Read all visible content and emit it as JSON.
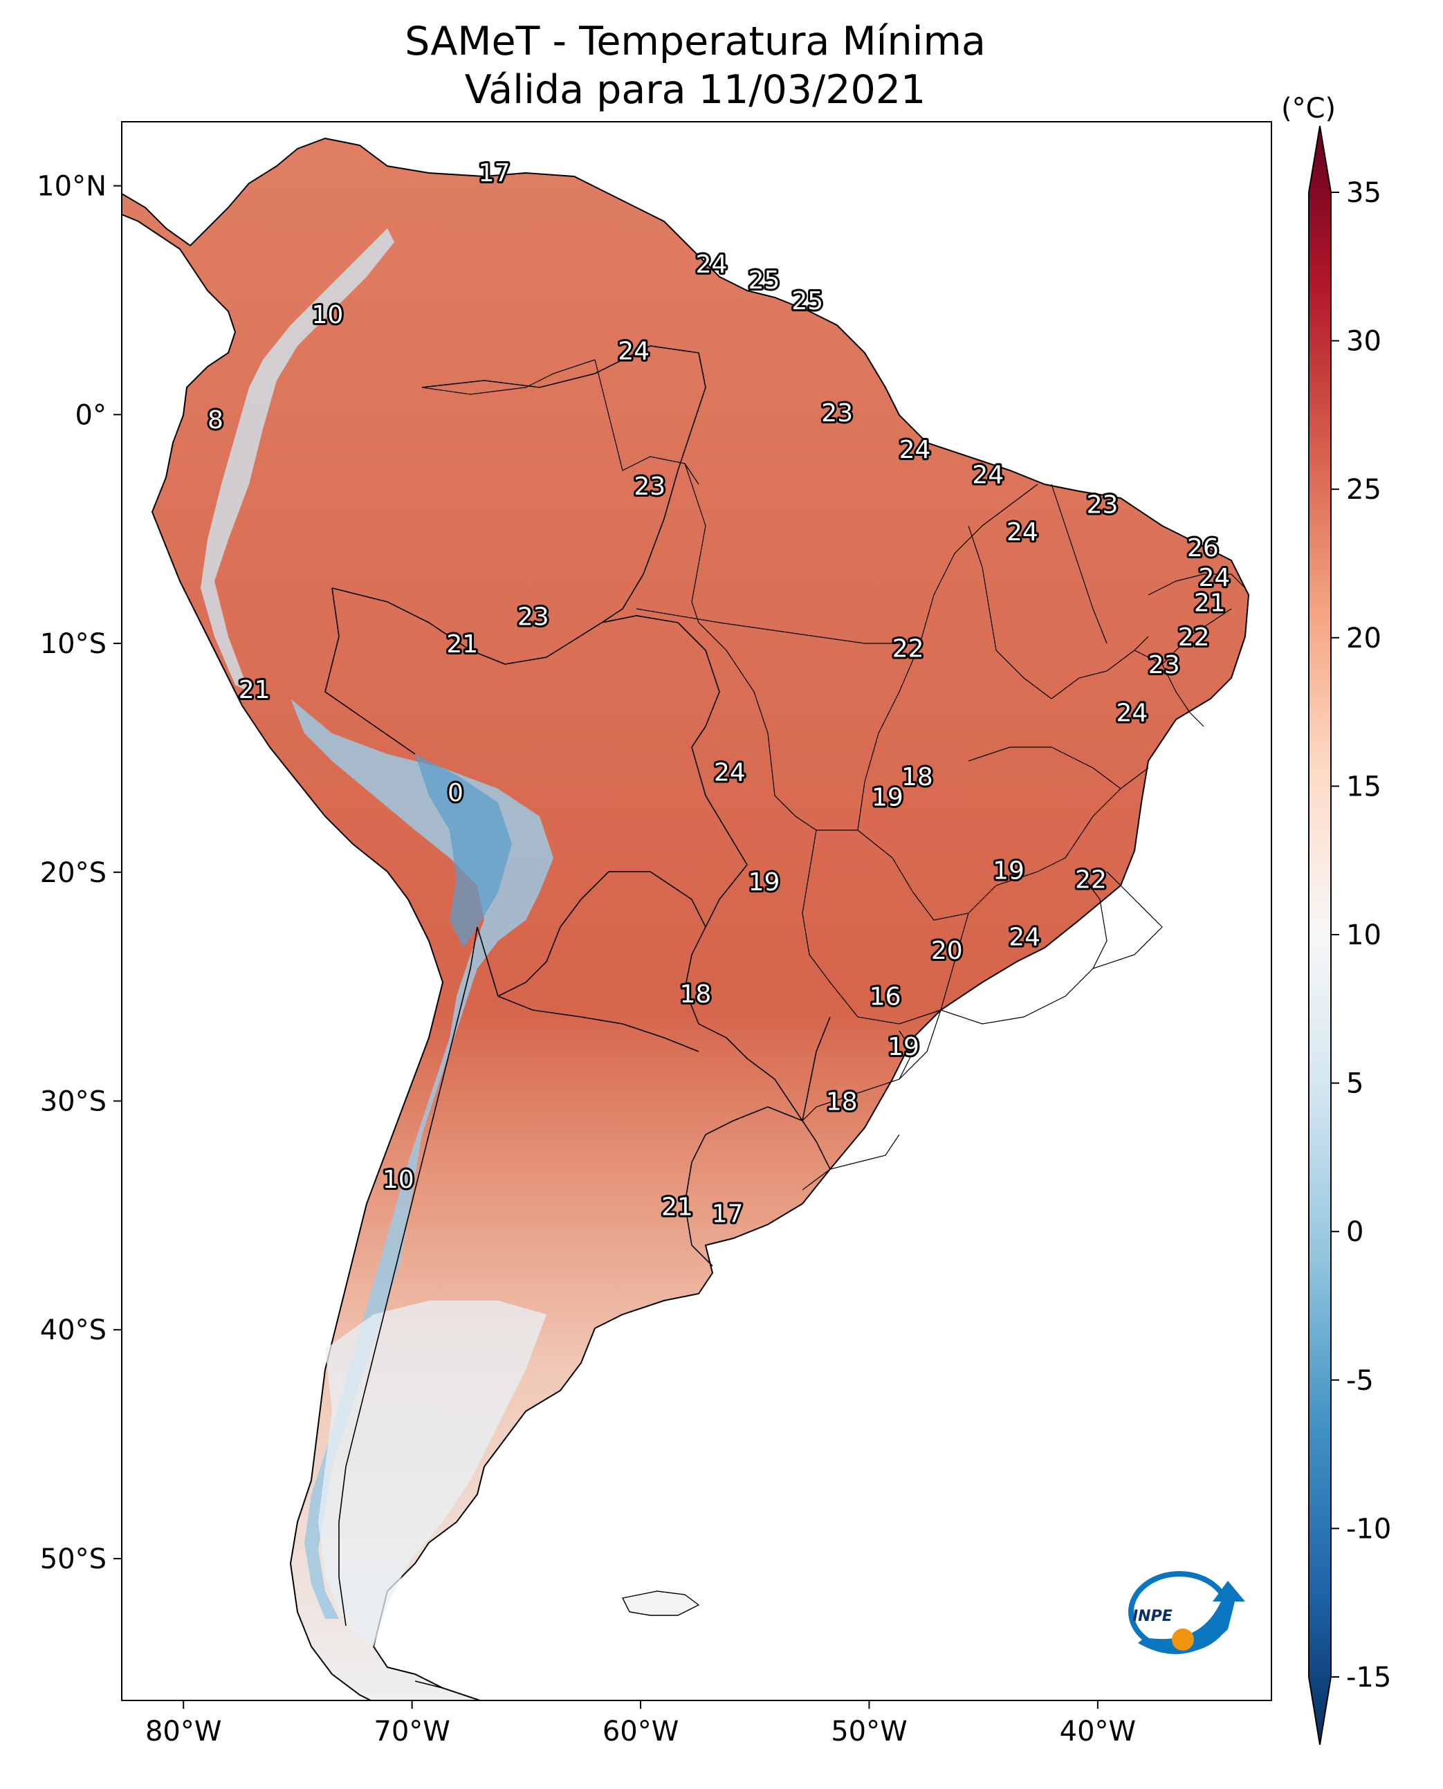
{
  "title_line1": "SAMeT - Temperatura Mínima",
  "title_line2": "Válida para 11/03/2021",
  "logo_text": "INPE",
  "map": {
    "lat_ticks": [
      {
        "lat": 10,
        "label": "10°N"
      },
      {
        "lat": 0,
        "label": "0°"
      },
      {
        "lat": -10,
        "label": "10°S"
      },
      {
        "lat": -20,
        "label": "20°S"
      },
      {
        "lat": -30,
        "label": "30°S"
      },
      {
        "lat": -40,
        "label": "40°S"
      },
      {
        "lat": -50,
        "label": "50°S"
      }
    ],
    "lon_ticks": [
      {
        "lon": -80,
        "label": "80°W"
      },
      {
        "lon": -70,
        "label": "70°W"
      },
      {
        "lon": -60,
        "label": "60°W"
      },
      {
        "lon": -50,
        "label": "50°W"
      },
      {
        "lon": -40,
        "label": "40°W"
      }
    ],
    "station_values": [
      {
        "lon": -66.4,
        "lat": 10.6,
        "value": "17"
      },
      {
        "lon": -56.9,
        "lat": 6.6,
        "value": "24"
      },
      {
        "lon": -54.6,
        "lat": 5.9,
        "value": "25"
      },
      {
        "lon": -52.7,
        "lat": 5.0,
        "value": "25"
      },
      {
        "lon": -73.7,
        "lat": 4.4,
        "value": "10"
      },
      {
        "lon": -60.3,
        "lat": 2.8,
        "value": "24"
      },
      {
        "lon": -51.4,
        "lat": 0.1,
        "value": "23"
      },
      {
        "lon": -78.6,
        "lat": -0.2,
        "value": "8"
      },
      {
        "lon": -48.0,
        "lat": -1.5,
        "value": "24"
      },
      {
        "lon": -44.8,
        "lat": -2.6,
        "value": "24"
      },
      {
        "lon": -59.6,
        "lat": -3.1,
        "value": "23"
      },
      {
        "lon": -39.8,
        "lat": -3.9,
        "value": "23"
      },
      {
        "lon": -43.3,
        "lat": -5.1,
        "value": "24"
      },
      {
        "lon": -35.4,
        "lat": -5.8,
        "value": "26"
      },
      {
        "lon": -34.9,
        "lat": -7.1,
        "value": "24"
      },
      {
        "lon": -35.1,
        "lat": -8.2,
        "value": "21"
      },
      {
        "lon": -64.7,
        "lat": -8.8,
        "value": "23"
      },
      {
        "lon": -35.8,
        "lat": -9.7,
        "value": "22"
      },
      {
        "lon": -67.8,
        "lat": -10.0,
        "value": "21"
      },
      {
        "lon": -48.3,
        "lat": -10.2,
        "value": "22"
      },
      {
        "lon": -37.1,
        "lat": -10.9,
        "value": "23"
      },
      {
        "lon": -76.9,
        "lat": -12.0,
        "value": "21"
      },
      {
        "lon": -38.5,
        "lat": -13.0,
        "value": "24"
      },
      {
        "lon": -56.1,
        "lat": -15.6,
        "value": "24"
      },
      {
        "lon": -47.9,
        "lat": -15.8,
        "value": "18"
      },
      {
        "lon": -49.2,
        "lat": -16.7,
        "value": "19"
      },
      {
        "lon": -68.1,
        "lat": -16.5,
        "value": "0"
      },
      {
        "lon": -43.9,
        "lat": -19.9,
        "value": "19"
      },
      {
        "lon": -54.6,
        "lat": -20.4,
        "value": "19"
      },
      {
        "lon": -40.3,
        "lat": -20.3,
        "value": "22"
      },
      {
        "lon": -43.2,
        "lat": -22.8,
        "value": "24"
      },
      {
        "lon": -46.6,
        "lat": -23.4,
        "value": "20"
      },
      {
        "lon": -57.6,
        "lat": -25.3,
        "value": "18"
      },
      {
        "lon": -49.3,
        "lat": -25.4,
        "value": "16"
      },
      {
        "lon": -48.5,
        "lat": -27.6,
        "value": "19"
      },
      {
        "lon": -51.2,
        "lat": -30.0,
        "value": "18"
      },
      {
        "lon": -70.6,
        "lat": -33.4,
        "value": "10"
      },
      {
        "lon": -58.4,
        "lat": -34.6,
        "value": "21"
      },
      {
        "lon": -56.2,
        "lat": -34.9,
        "value": "17"
      }
    ]
  },
  "colorbar": {
    "unit": "(°C)",
    "min": -15,
    "max": 35,
    "ticks": [
      "35",
      "30",
      "25",
      "20",
      "15",
      "10",
      "5",
      "0",
      "-5",
      "-10",
      "-15"
    ],
    "colors": [
      "#053061",
      "#2166ac",
      "#4393c3",
      "#92c5de",
      "#d1e5f0",
      "#f7f7f7",
      "#fddbc7",
      "#f4a582",
      "#d6604d",
      "#b2182b",
      "#67001f"
    ]
  },
  "colors": {
    "land_warm": "#d86a50",
    "land_north": "#df7b60",
    "land_south": "#f5ddd1",
    "andes_cold": "#8fbfdf",
    "patagonia": "#eaf1f6",
    "logo_blue": "#0a76bf",
    "logo_orange": "#f0930f"
  }
}
